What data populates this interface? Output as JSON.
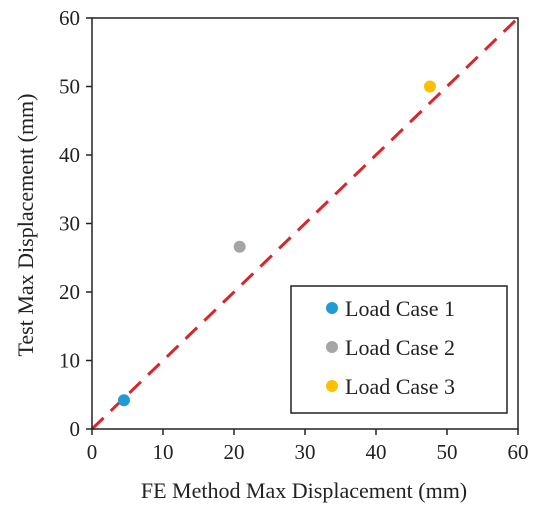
{
  "chart_data": {
    "type": "scatter",
    "title": "",
    "xlabel": "FE Method Max Displacement (mm)",
    "ylabel": "Test Max Displacement (mm)",
    "xlim": [
      0,
      60
    ],
    "ylim": [
      0,
      60
    ],
    "xticks": [
      0,
      10,
      20,
      30,
      40,
      50,
      60
    ],
    "yticks": [
      0,
      10,
      20,
      30,
      40,
      50,
      60
    ],
    "grid": false,
    "legend_position": "bottom-right",
    "reference_line": {
      "style": "dashed",
      "color": "#d9262b",
      "from": [
        0,
        0
      ],
      "to": [
        60,
        60
      ]
    },
    "series": [
      {
        "name": "Load Case 1",
        "color": "#1f9bd7",
        "points": [
          {
            "x": 4.5,
            "y": 4.2
          }
        ]
      },
      {
        "name": "Load Case 2",
        "color": "#a5a5a5",
        "points": [
          {
            "x": 20.8,
            "y": 26.6
          }
        ]
      },
      {
        "name": "Load Case 3",
        "color": "#ffc000",
        "points": [
          {
            "x": 47.6,
            "y": 50.0
          }
        ]
      }
    ]
  }
}
